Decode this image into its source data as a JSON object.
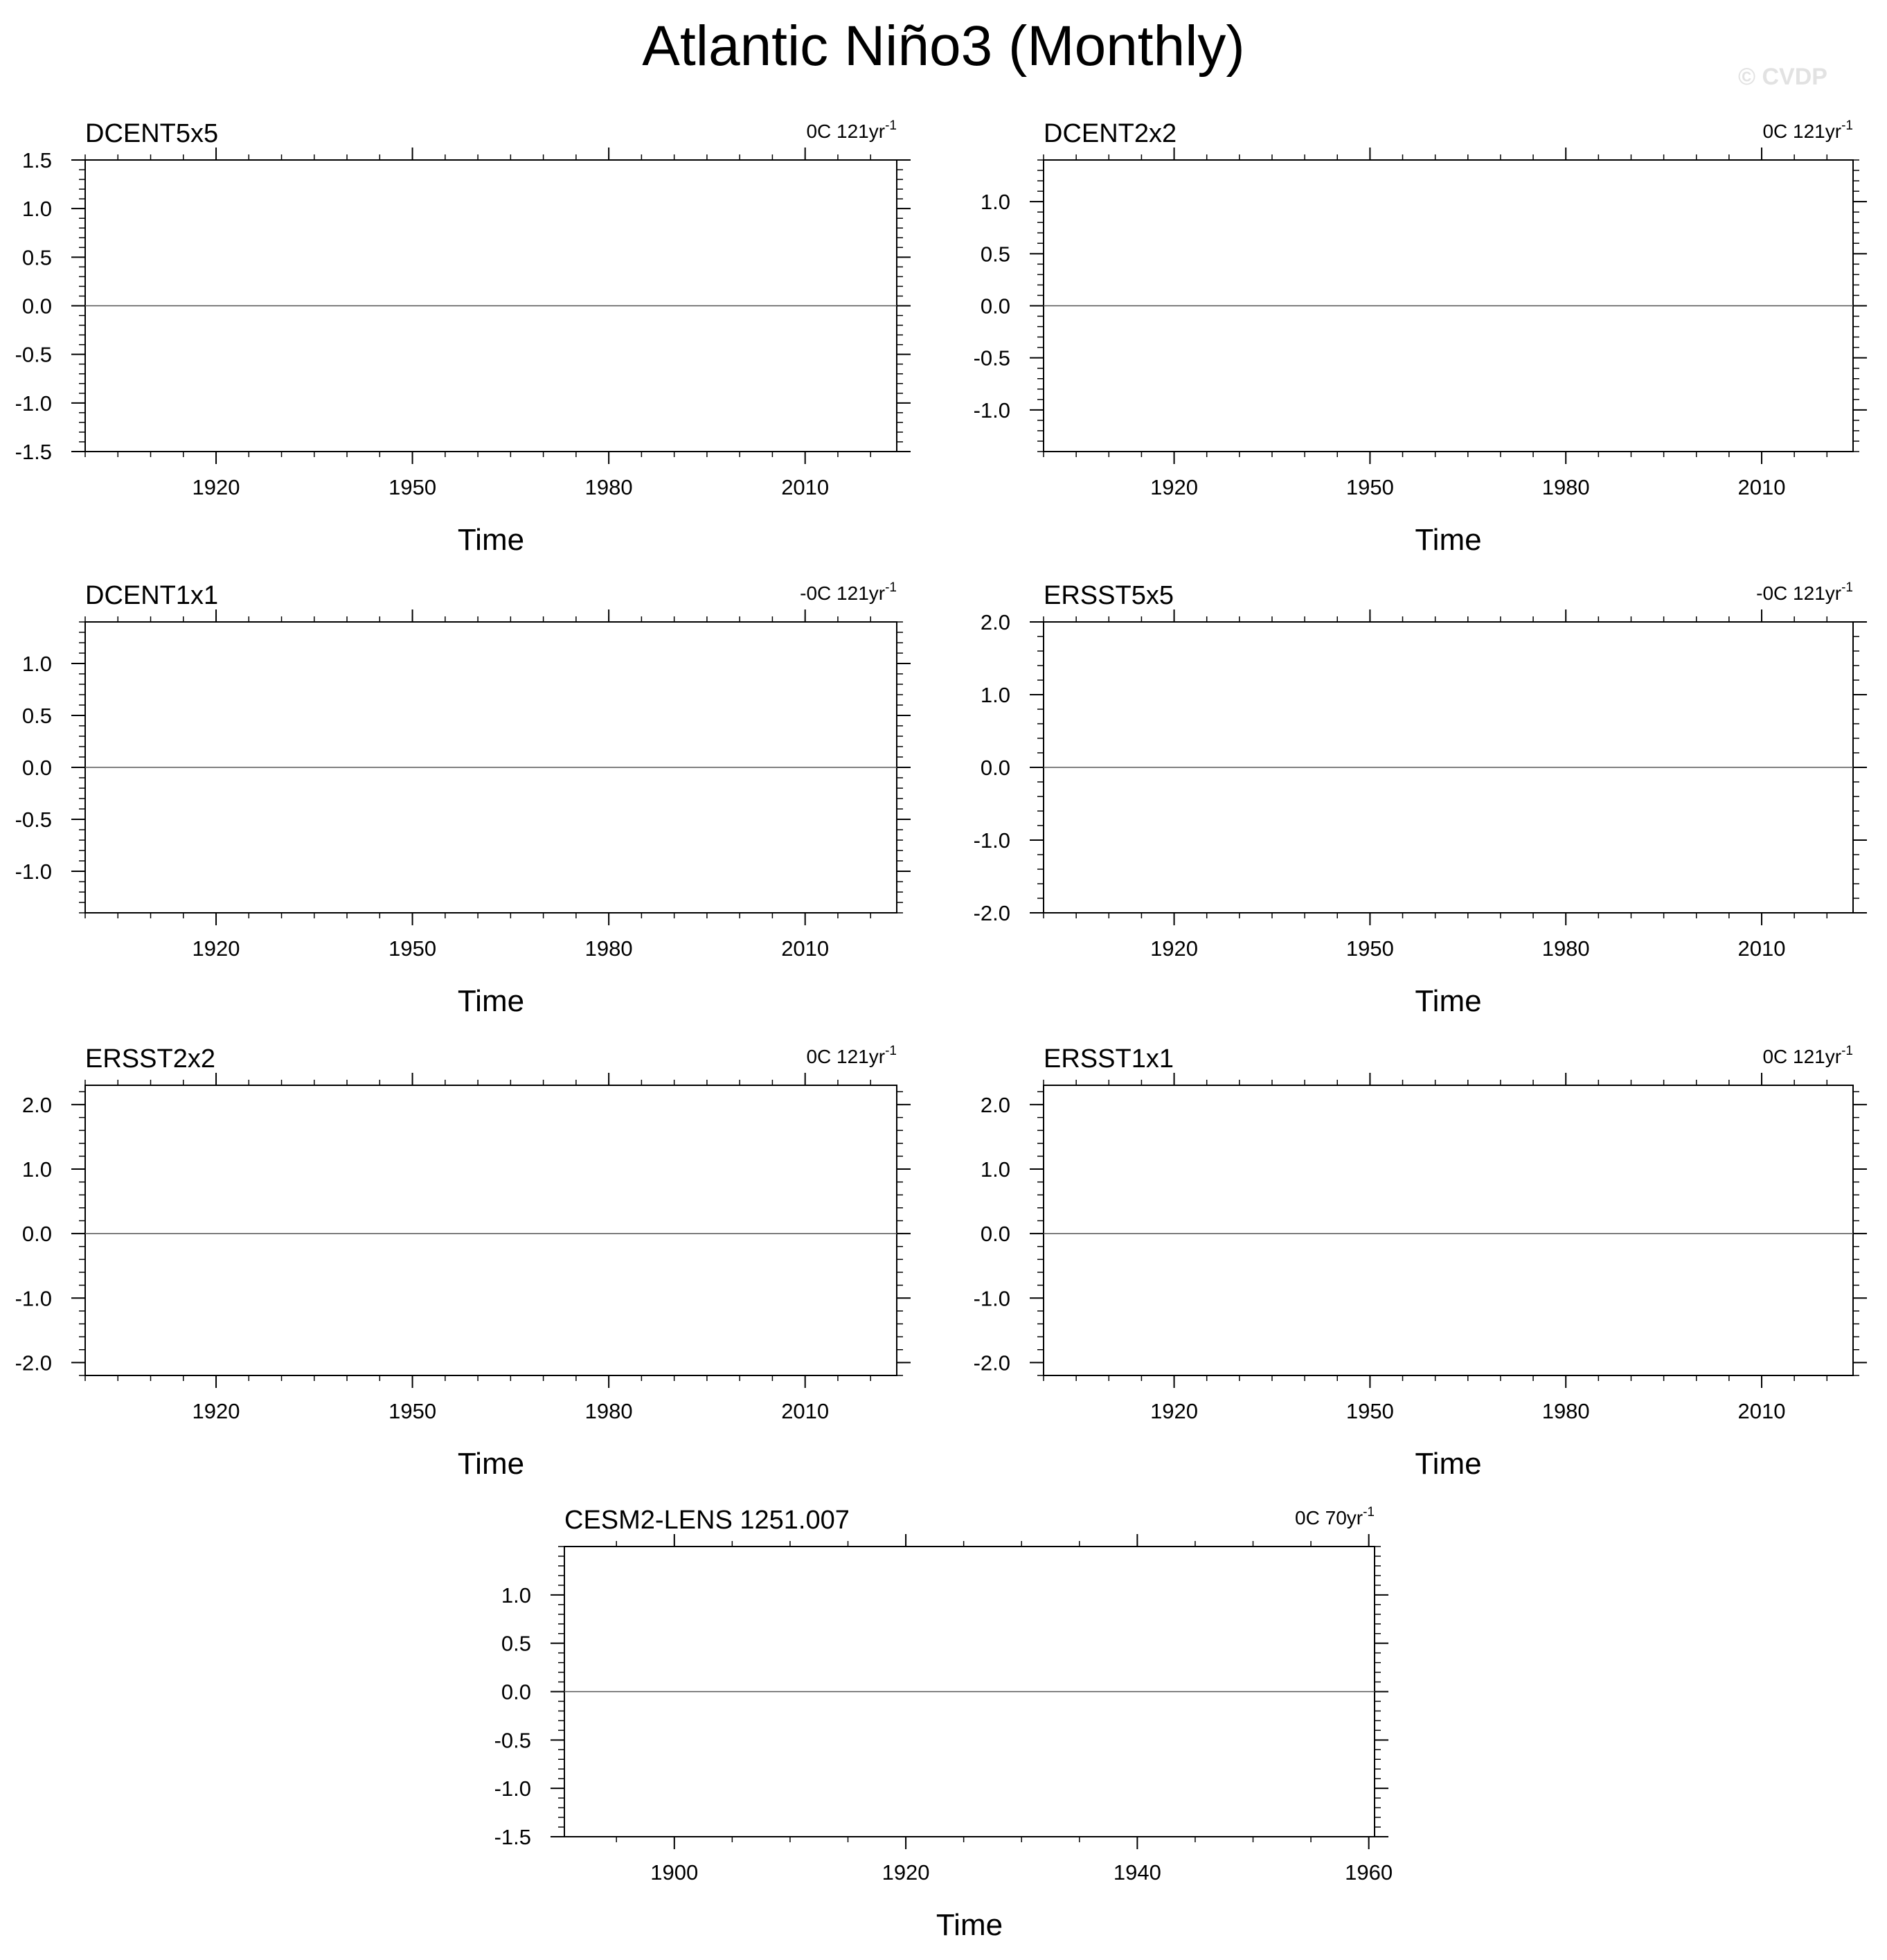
{
  "title": "Atlantic Niño3 (Monthly)",
  "watermark": "© CVDP",
  "colors": {
    "observed": "#4169e1",
    "reference": "#999999",
    "frame": "#000000",
    "zero_line": "#555555"
  },
  "chart_data": [
    {
      "type": "line",
      "title": "DCENT5x5",
      "trend_label": "0C 121yr",
      "trend_sup": "-1",
      "xlabel": "Time",
      "ylabel": "",
      "xlim": [
        1900,
        2024
      ],
      "ylim": [
        -1.5,
        1.5
      ],
      "xticks": [
        1920,
        1950,
        1980,
        2010
      ],
      "xtick_labels": [
        "1920",
        "1950",
        "1980",
        "2010"
      ],
      "yticks": [
        -1.5,
        -1.0,
        -0.5,
        0.0,
        0.5,
        1.0,
        1.5
      ],
      "ytick_labels": [
        "-1.5",
        "-1.0",
        "-0.5",
        "0.0",
        "0.5",
        "1.0",
        "1.5"
      ],
      "series": [
        {
          "x": [
            1900,
            2024
          ],
          "y": [
            0.0,
            0.0
          ]
        }
      ]
    },
    {
      "type": "line",
      "title": "DCENT2x2",
      "trend_label": "0C 121yr",
      "trend_sup": "-1",
      "xlabel": "Time",
      "ylabel": "",
      "xlim": [
        1900,
        2024
      ],
      "ylim": [
        -1.4,
        1.4
      ],
      "xticks": [
        1920,
        1950,
        1980,
        2010
      ],
      "xtick_labels": [
        "1920",
        "1950",
        "1980",
        "2010"
      ],
      "yticks": [
        -1.0,
        -0.5,
        0.0,
        0.5,
        1.0
      ],
      "ytick_labels": [
        "-1.0",
        "-0.5",
        "0.0",
        "0.5",
        "1.0"
      ],
      "series": [
        {
          "x": [
            1900,
            2024
          ],
          "y": [
            0.0,
            0.0
          ]
        }
      ]
    },
    {
      "type": "line",
      "title": "DCENT1x1",
      "trend_label": "-0C 121yr",
      "trend_sup": "-1",
      "xlabel": "Time",
      "ylabel": "",
      "xlim": [
        1900,
        2024
      ],
      "ylim": [
        -1.4,
        1.4
      ],
      "xticks": [
        1920,
        1950,
        1980,
        2010
      ],
      "xtick_labels": [
        "1920",
        "1950",
        "1980",
        "2010"
      ],
      "yticks": [
        -1.0,
        -0.5,
        0.0,
        0.5,
        1.0
      ],
      "ytick_labels": [
        "-1.0",
        "-0.5",
        "0.0",
        "0.5",
        "1.0"
      ],
      "series": [
        {
          "x": [
            1900,
            2024
          ],
          "y": [
            0.0,
            0.0
          ]
        }
      ]
    },
    {
      "type": "line",
      "title": "ERSST5x5",
      "trend_label": "-0C 121yr",
      "trend_sup": "-1",
      "xlabel": "Time",
      "ylabel": "",
      "xlim": [
        1900,
        2024
      ],
      "ylim": [
        -2.0,
        2.0
      ],
      "xticks": [
        1920,
        1950,
        1980,
        2010
      ],
      "xtick_labels": [
        "1920",
        "1950",
        "1980",
        "2010"
      ],
      "yticks": [
        -2.0,
        -1.0,
        0.0,
        1.0,
        2.0
      ],
      "ytick_labels": [
        "-2.0",
        "-1.0",
        "0.0",
        "1.0",
        "2.0"
      ],
      "series": [
        {
          "x": [
            1900,
            2024
          ],
          "y": [
            0.0,
            0.0
          ]
        }
      ]
    },
    {
      "type": "line",
      "title": "ERSST2x2",
      "trend_label": "0C 121yr",
      "trend_sup": "-1",
      "xlabel": "Time",
      "ylabel": "",
      "xlim": [
        1900,
        2024
      ],
      "ylim": [
        -2.2,
        2.3
      ],
      "xticks": [
        1920,
        1950,
        1980,
        2010
      ],
      "xtick_labels": [
        "1920",
        "1950",
        "1980",
        "2010"
      ],
      "yticks": [
        -2.0,
        -1.0,
        0.0,
        1.0,
        2.0
      ],
      "ytick_labels": [
        "-2.0",
        "-1.0",
        "0.0",
        "1.0",
        "2.0"
      ],
      "series": [
        {
          "x": [
            1900,
            2024
          ],
          "y": [
            0.0,
            0.0
          ]
        }
      ]
    },
    {
      "type": "line",
      "title": "ERSST1x1",
      "trend_label": "0C 121yr",
      "trend_sup": "-1",
      "xlabel": "Time",
      "ylabel": "",
      "xlim": [
        1900,
        2024
      ],
      "ylim": [
        -2.2,
        2.3
      ],
      "xticks": [
        1920,
        1950,
        1980,
        2010
      ],
      "xtick_labels": [
        "1920",
        "1950",
        "1980",
        "2010"
      ],
      "yticks": [
        -2.0,
        -1.0,
        0.0,
        1.0,
        2.0
      ],
      "ytick_labels": [
        "-2.0",
        "-1.0",
        "0.0",
        "1.0",
        "2.0"
      ],
      "series": [
        {
          "x": [
            1900,
            2024
          ],
          "y": [
            0.0,
            0.0
          ]
        }
      ]
    },
    {
      "type": "line",
      "title": "CESM2-LENS 1251.007",
      "trend_label": "0C 70yr",
      "trend_sup": "-1",
      "xlabel": "Time",
      "ylabel": "",
      "xlim": [
        1890.5,
        1960.5
      ],
      "ylim": [
        -1.5,
        1.5
      ],
      "xticks": [
        1900,
        1920,
        1940,
        1960
      ],
      "xtick_labels": [
        "1900",
        "1920",
        "1940",
        "1960"
      ],
      "yticks": [
        -1.5,
        -1.0,
        -0.5,
        0.0,
        0.5,
        1.0
      ],
      "ytick_labels": [
        "-1.5",
        "-1.0",
        "-0.5",
        "0.0",
        "0.5",
        "1.0"
      ],
      "series": [
        {
          "x": [
            1890.5,
            1960.5
          ],
          "y": [
            0.0,
            0.0
          ]
        }
      ]
    }
  ]
}
